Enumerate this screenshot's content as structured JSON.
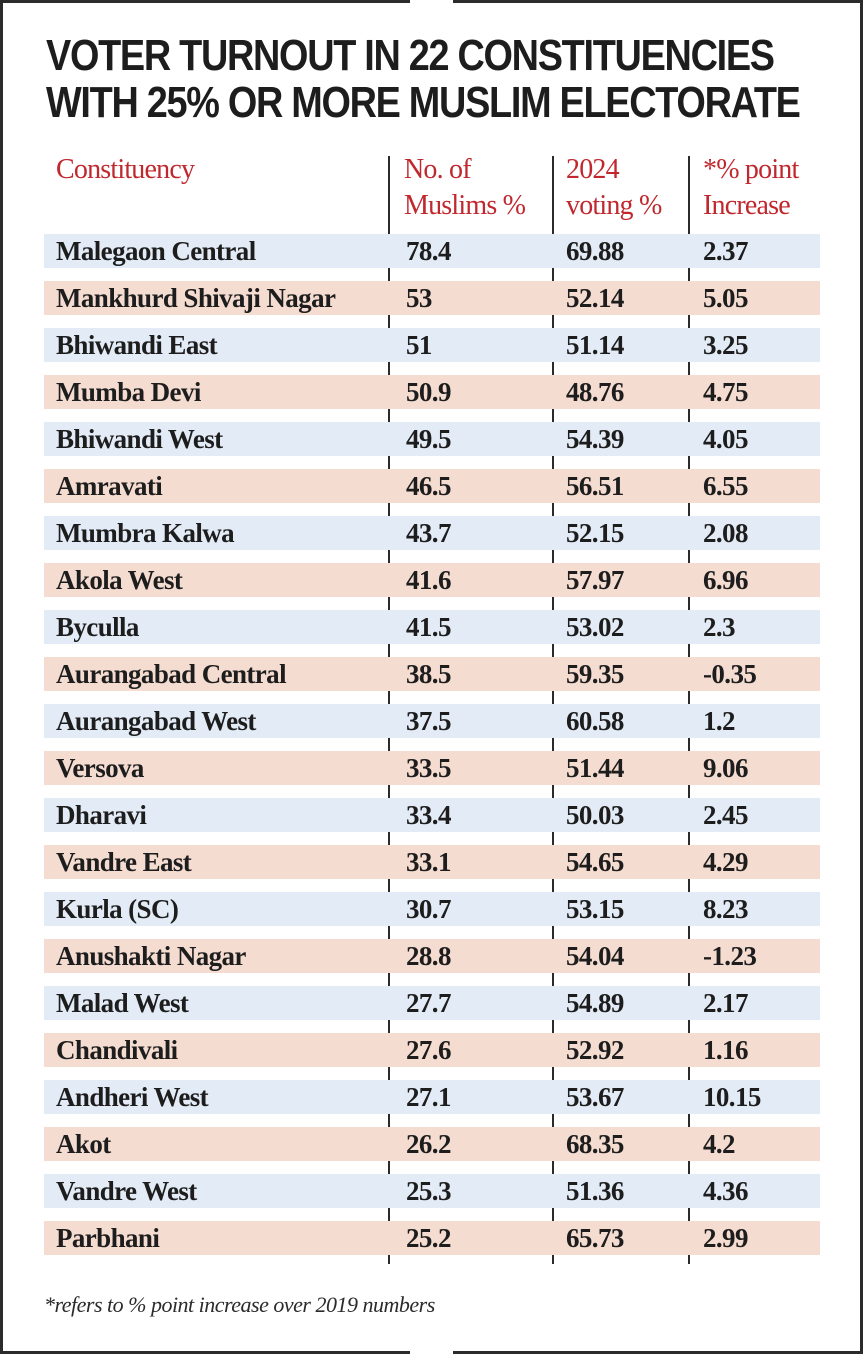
{
  "chart_data": {
    "type": "table",
    "title": "VOTER TURNOUT IN 22 CONSTITUENCIES WITH 25% OR MORE MUSLIM ELECTORATE",
    "title_lines": [
      "VOTER TURNOUT IN 22 CONSTITUENCIES",
      "WITH 25% OR MORE MUSLIM ELECTORATE"
    ],
    "columns": [
      {
        "key": "name",
        "lines": [
          "Constituency"
        ]
      },
      {
        "key": "muslims",
        "lines": [
          "No. of",
          "Muslims %"
        ]
      },
      {
        "key": "voting",
        "lines": [
          "2024",
          "voting %"
        ]
      },
      {
        "key": "increase",
        "lines": [
          "*% point",
          "Increase"
        ]
      }
    ],
    "rows": [
      {
        "name": "Malegaon Central",
        "muslims": "78.4",
        "voting": "69.88",
        "increase": "2.37"
      },
      {
        "name": "Mankhurd Shivaji Nagar",
        "muslims": "53",
        "voting": "52.14",
        "increase": "5.05"
      },
      {
        "name": "Bhiwandi East",
        "muslims": "51",
        "voting": "51.14",
        "increase": "3.25"
      },
      {
        "name": "Mumba Devi",
        "muslims": "50.9",
        "voting": "48.76",
        "increase": "4.75"
      },
      {
        "name": "Bhiwandi West",
        "muslims": "49.5",
        "voting": "54.39",
        "increase": "4.05"
      },
      {
        "name": "Amravati",
        "muslims": "46.5",
        "voting": "56.51",
        "increase": "6.55"
      },
      {
        "name": "Mumbra Kalwa",
        "muslims": "43.7",
        "voting": "52.15",
        "increase": "2.08"
      },
      {
        "name": "Akola West",
        "muslims": "41.6",
        "voting": "57.97",
        "increase": "6.96"
      },
      {
        "name": "Byculla",
        "muslims": "41.5",
        "voting": "53.02",
        "increase": "2.3"
      },
      {
        "name": "Aurangabad Central",
        "muslims": "38.5",
        "voting": "59.35",
        "increase": "-0.35"
      },
      {
        "name": "Aurangabad West",
        "muslims": "37.5",
        "voting": "60.58",
        "increase": "1.2"
      },
      {
        "name": "Versova",
        "muslims": "33.5",
        "voting": "51.44",
        "increase": "9.06"
      },
      {
        "name": "Dharavi",
        "muslims": "33.4",
        "voting": "50.03",
        "increase": "2.45"
      },
      {
        "name": "Vandre East",
        "muslims": "33.1",
        "voting": "54.65",
        "increase": "4.29"
      },
      {
        "name": "Kurla (SC)",
        "muslims": "30.7",
        "voting": "53.15",
        "increase": "8.23"
      },
      {
        "name": "Anushakti Nagar",
        "muslims": "28.8",
        "voting": "54.04",
        "increase": "-1.23"
      },
      {
        "name": "Malad West",
        "muslims": "27.7",
        "voting": "54.89",
        "increase": "2.17"
      },
      {
        "name": "Chandivali",
        "muslims": "27.6",
        "voting": "52.92",
        "increase": "1.16"
      },
      {
        "name": "Andheri West",
        "muslims": "27.1",
        "voting": "53.67",
        "increase": "10.15"
      },
      {
        "name": "Akot",
        "muslims": "26.2",
        "voting": "68.35",
        "increase": "4.2"
      },
      {
        "name": "Vandre West",
        "muslims": "25.3",
        "voting": "51.36",
        "increase": "4.36"
      },
      {
        "name": "Parbhani",
        "muslims": "25.2",
        "voting": "65.73",
        "increase": "2.99"
      }
    ],
    "footnote": "*refers to % point increase over 2019 numbers"
  },
  "colors": {
    "header_text": "#c0282d",
    "row_band_a": "#e3ebf6",
    "row_band_b": "#f5dcd1",
    "body_text": "#1d1d1d"
  }
}
